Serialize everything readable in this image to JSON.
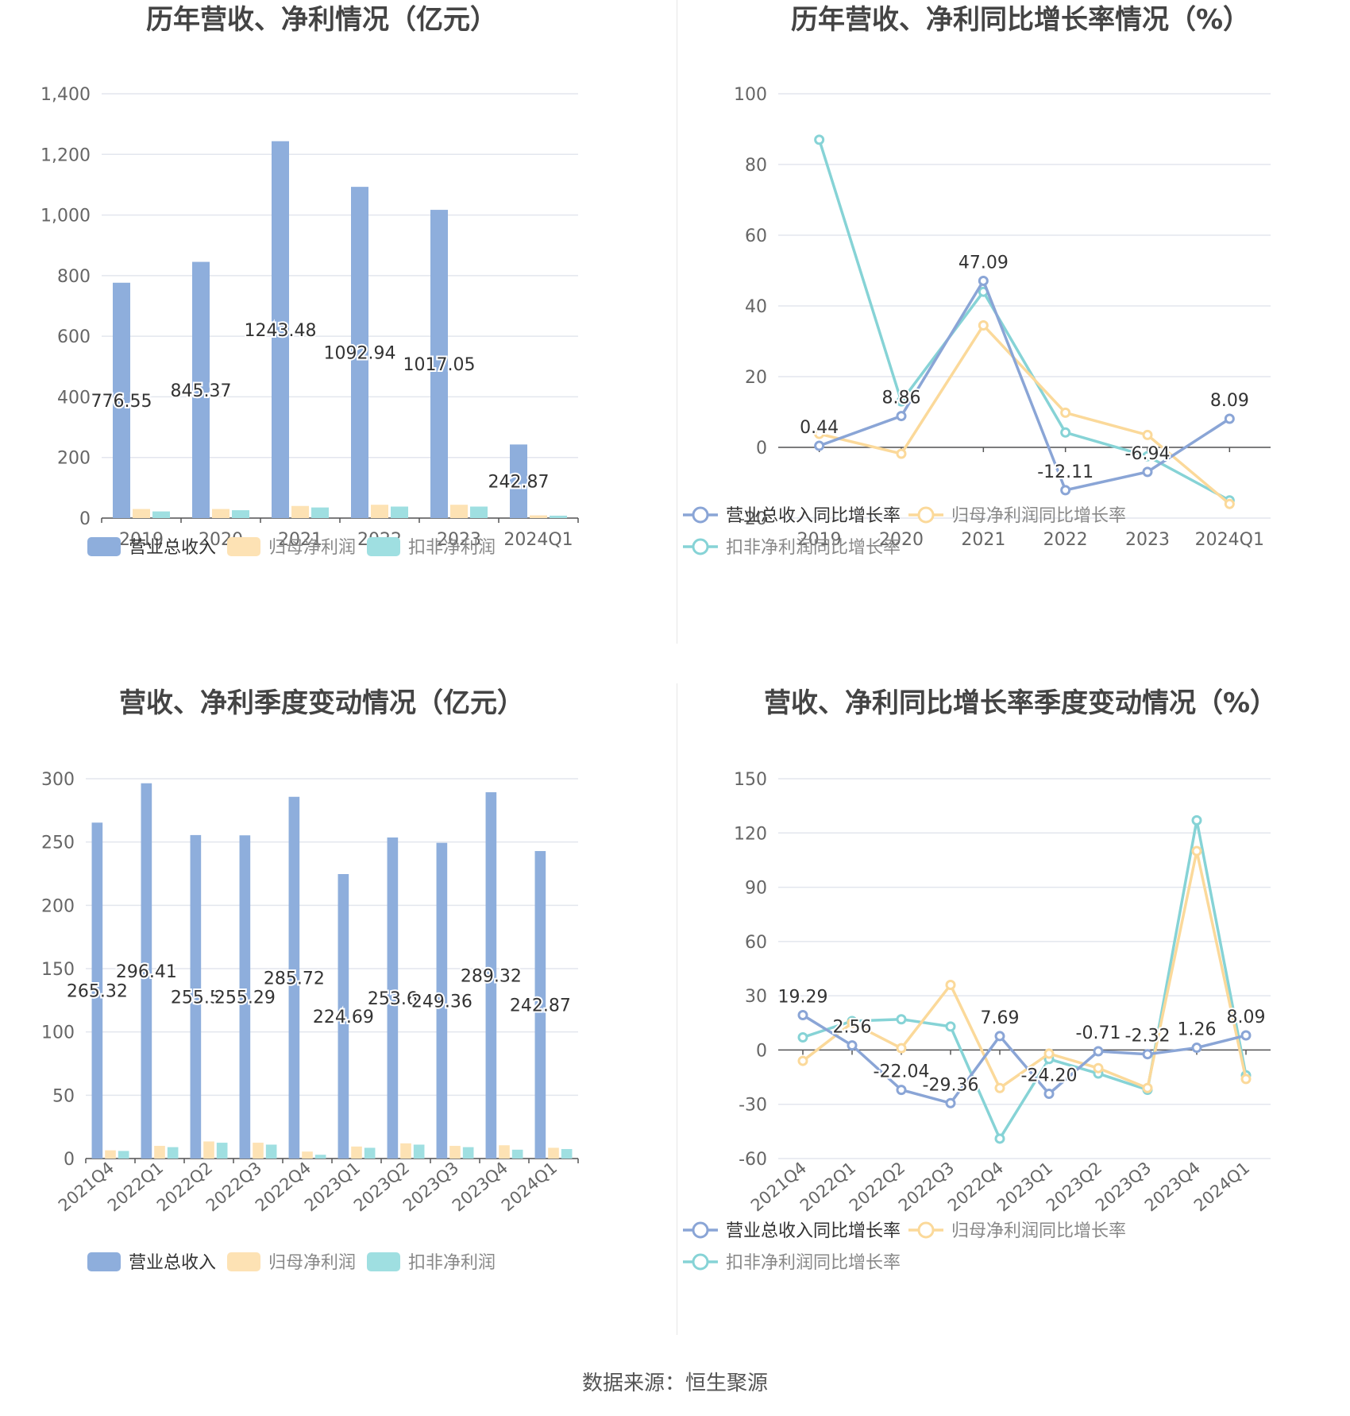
{
  "source_text": "数据来源：恒生聚源",
  "colors": {
    "revenue": "#8eaedc",
    "net_profit": "#fde2b4",
    "deducted_profit": "#9fdfe1",
    "line_revenue": "#8aa5d6",
    "line_net": "#fbd99a",
    "line_deducted": "#86d3d6"
  },
  "chart_data": [
    {
      "type": "bar",
      "title": "历年营收、净利情况（亿元）",
      "categories": [
        "2019",
        "2020",
        "2021",
        "2022",
        "2023",
        "2024Q1"
      ],
      "ylim": [
        0,
        1400
      ],
      "yticks": [
        "0",
        "200",
        "400",
        "600",
        "800",
        "1,000",
        "1,200",
        "1,400"
      ],
      "series": [
        {
          "name": "营业总收入",
          "values": [
            776.55,
            845.37,
            1243.48,
            1092.94,
            1017.05,
            242.87
          ],
          "labels": [
            "776.55",
            "845.37",
            "1243.48",
            "1092.94",
            "1017.05",
            "242.87"
          ]
        },
        {
          "name": "归母净利润",
          "values": [
            30,
            30,
            40,
            44,
            44,
            9
          ]
        },
        {
          "name": "扣非净利润",
          "values": [
            22,
            26,
            35,
            38,
            38,
            8
          ]
        }
      ],
      "legend": "bottom"
    },
    {
      "type": "line",
      "title": "历年营收、净利同比增长率情况（%）",
      "categories": [
        "2019",
        "2020",
        "2021",
        "2022",
        "2023",
        "2024Q1"
      ],
      "ylim": [
        -20,
        100
      ],
      "yticks": [
        "-20",
        "0",
        "20",
        "40",
        "60",
        "80",
        "100"
      ],
      "series": [
        {
          "name": "营业总收入同比增长率",
          "values": [
            0.44,
            8.86,
            47.09,
            -12.11,
            -6.94,
            8.09
          ],
          "labels": [
            "0.44",
            "8.86",
            "47.09",
            "-12.11",
            "-6.94",
            "8.09"
          ]
        },
        {
          "name": "归母净利润同比增长率",
          "values": [
            3.8,
            -1.8,
            34.5,
            9.8,
            3.5,
            -16
          ]
        },
        {
          "name": "扣非净利润同比增长率",
          "values": [
            87,
            13,
            44,
            4.2,
            -2.5,
            -15
          ]
        }
      ],
      "legend": "bottom"
    },
    {
      "type": "bar",
      "title": "营收、净利季度变动情况（亿元）",
      "categories": [
        "2021Q4",
        "2022Q1",
        "2022Q2",
        "2022Q3",
        "2022Q4",
        "2023Q1",
        "2023Q2",
        "2023Q3",
        "2023Q4",
        "2024Q1"
      ],
      "ylim": [
        0,
        300
      ],
      "yticks": [
        "0",
        "50",
        "100",
        "150",
        "200",
        "250",
        "300"
      ],
      "series": [
        {
          "name": "营业总收入",
          "values": [
            265.32,
            296.41,
            255.5,
            255.29,
            285.72,
            224.69,
            253.6,
            249.36,
            289.32,
            242.87
          ],
          "labels": [
            "265.32",
            "296.41",
            "255.5",
            "255.29",
            "285.72",
            "224.69",
            "253.6",
            "249.36",
            "289.32",
            "242.87"
          ]
        },
        {
          "name": "归母净利润",
          "values": [
            6.5,
            10,
            13.5,
            12.5,
            5.5,
            9.5,
            12,
            10,
            10.5,
            8.5
          ]
        },
        {
          "name": "扣非净利润",
          "values": [
            6,
            9,
            12.5,
            11,
            3,
            8.5,
            11,
            9,
            7,
            7.5
          ]
        }
      ],
      "legend": "bottom"
    },
    {
      "type": "line",
      "title": "营收、净利同比增长率季度变动情况（%）",
      "categories": [
        "2021Q4",
        "2022Q1",
        "2022Q2",
        "2022Q3",
        "2022Q4",
        "2023Q1",
        "2023Q2",
        "2023Q3",
        "2023Q4",
        "2024Q1"
      ],
      "ylim": [
        -60,
        150
      ],
      "yticks": [
        "-60",
        "-30",
        "0",
        "30",
        "60",
        "90",
        "120",
        "150"
      ],
      "series": [
        {
          "name": "营业总收入同比增长率",
          "values": [
            19.29,
            2.56,
            -22.04,
            -29.36,
            7.69,
            -24.2,
            -0.71,
            -2.32,
            1.26,
            8.09
          ],
          "labels": [
            "19.29",
            "2.56",
            "-22.04",
            "-29.36",
            "7.69",
            "-24.20",
            "-0.71",
            "-2.32",
            "1.26",
            "8.09"
          ]
        },
        {
          "name": "归母净利润同比增长率",
          "values": [
            -6,
            15,
            1,
            36,
            -21,
            -2,
            -10,
            -21,
            110,
            -16
          ]
        },
        {
          "name": "扣非净利润同比增长率",
          "values": [
            7,
            16,
            17,
            13,
            -49,
            -5,
            -13,
            -22,
            127,
            -14
          ]
        }
      ],
      "legend": "bottom"
    }
  ]
}
